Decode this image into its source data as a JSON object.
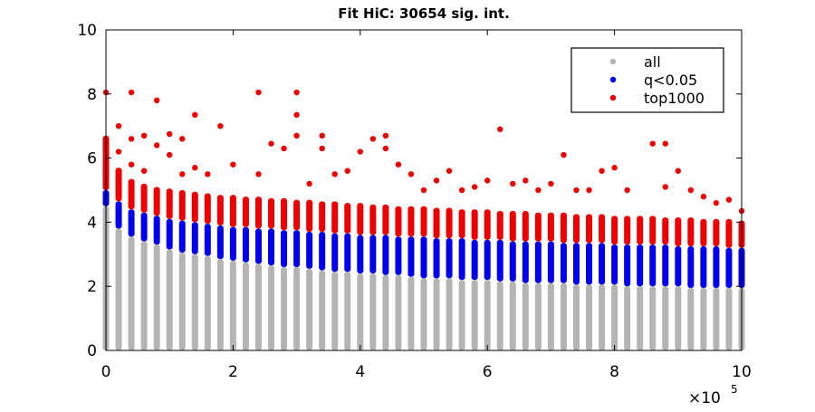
{
  "chart_data": {
    "type": "scatter",
    "title": "Fit HiC: 30654 sig. int.",
    "xlabel": "",
    "ylabel": "",
    "x_multiplier_label": "×10",
    "x_multiplier_exponent": "5",
    "xlim": [
      0,
      10
    ],
    "ylim": [
      0,
      10
    ],
    "x_ticks": [
      "0",
      "2",
      "4",
      "6",
      "8",
      "10"
    ],
    "y_ticks": [
      "0",
      "2",
      "4",
      "6",
      "8",
      "10"
    ],
    "x_tick_values": [
      0,
      2,
      4,
      6,
      8,
      10
    ],
    "y_tick_values": [
      0,
      2,
      4,
      6,
      8,
      10
    ],
    "grid": false,
    "legend_position": "top-right",
    "colors": {
      "all": "#b4b4b4",
      "q": "#0000ee",
      "top": "#ee0000"
    },
    "series": [
      {
        "name": "all",
        "color": "#b4b4b4"
      },
      {
        "name": "q<0.05",
        "color": "#0000ee"
      },
      {
        "name": "top1000",
        "color": "#ee0000"
      }
    ],
    "x": [
      0.0,
      0.2,
      0.4,
      0.6,
      0.8,
      1.0,
      1.2,
      1.4,
      1.6,
      1.8,
      2.0,
      2.2,
      2.4,
      2.6,
      2.8,
      3.0,
      3.2,
      3.4,
      3.6,
      3.8,
      4.0,
      4.2,
      4.4,
      4.6,
      4.8,
      5.0,
      5.2,
      5.4,
      5.6,
      5.8,
      6.0,
      6.2,
      6.4,
      6.6,
      6.8,
      7.0,
      7.2,
      7.4,
      7.6,
      7.8,
      8.0,
      8.2,
      8.4,
      8.6,
      8.8,
      9.0,
      9.2,
      9.4,
      9.6,
      9.8,
      10.0
    ],
    "all_top": [
      4.5,
      3.8,
      3.55,
      3.4,
      3.3,
      3.15,
      3.05,
      3.0,
      2.95,
      2.85,
      2.8,
      2.75,
      2.7,
      2.65,
      2.6,
      2.6,
      2.55,
      2.5,
      2.45,
      2.45,
      2.4,
      2.4,
      2.35,
      2.35,
      2.3,
      2.25,
      2.25,
      2.25,
      2.2,
      2.2,
      2.2,
      2.15,
      2.15,
      2.1,
      2.1,
      2.1,
      2.1,
      2.05,
      2.05,
      2.05,
      2.05,
      2.0,
      2.0,
      2.0,
      2.0,
      2.0,
      1.95,
      1.95,
      1.95,
      1.95,
      1.95
    ],
    "q_top": [
      5.0,
      4.65,
      4.4,
      4.3,
      4.2,
      4.1,
      4.05,
      4.0,
      3.95,
      3.9,
      3.85,
      3.85,
      3.8,
      3.8,
      3.75,
      3.75,
      3.7,
      3.7,
      3.65,
      3.65,
      3.6,
      3.6,
      3.6,
      3.55,
      3.55,
      3.55,
      3.5,
      3.5,
      3.5,
      3.45,
      3.45,
      3.45,
      3.4,
      3.4,
      3.4,
      3.4,
      3.35,
      3.35,
      3.35,
      3.35,
      3.3,
      3.3,
      3.3,
      3.3,
      3.3,
      3.25,
      3.25,
      3.25,
      3.25,
      3.2,
      3.2
    ],
    "red_top": [
      6.7,
      5.7,
      5.35,
      5.2,
      5.1,
      5.05,
      5.0,
      4.95,
      4.9,
      4.85,
      4.85,
      4.8,
      4.8,
      4.75,
      4.75,
      4.7,
      4.7,
      4.65,
      4.65,
      4.6,
      4.6,
      4.55,
      4.55,
      4.5,
      4.5,
      4.5,
      4.45,
      4.45,
      4.4,
      4.4,
      4.4,
      4.35,
      4.35,
      4.35,
      4.3,
      4.3,
      4.3,
      4.25,
      4.25,
      4.25,
      4.2,
      4.2,
      4.2,
      4.2,
      4.15,
      4.15,
      4.15,
      4.1,
      4.1,
      4.1,
      4.05
    ],
    "top1000_outliers": [
      [
        0.0,
        8.05
      ],
      [
        0.0,
        6.4
      ],
      [
        0.0,
        6.0
      ],
      [
        0.2,
        6.2
      ],
      [
        0.2,
        7.0
      ],
      [
        0.4,
        8.05
      ],
      [
        0.4,
        6.6
      ],
      [
        0.4,
        5.8
      ],
      [
        0.6,
        6.7
      ],
      [
        0.6,
        5.6
      ],
      [
        0.8,
        7.8
      ],
      [
        0.8,
        6.4
      ],
      [
        1.0,
        6.75
      ],
      [
        1.0,
        6.1
      ],
      [
        1.2,
        6.6
      ],
      [
        1.2,
        5.5
      ],
      [
        1.4,
        7.35
      ],
      [
        1.4,
        5.7
      ],
      [
        1.6,
        5.5
      ],
      [
        1.8,
        7.0
      ],
      [
        2.0,
        5.8
      ],
      [
        2.4,
        8.05
      ],
      [
        2.4,
        5.5
      ],
      [
        2.6,
        6.45
      ],
      [
        2.8,
        6.3
      ],
      [
        3.0,
        8.05
      ],
      [
        3.0,
        7.35
      ],
      [
        3.0,
        6.7
      ],
      [
        3.2,
        5.2
      ],
      [
        3.4,
        6.7
      ],
      [
        3.4,
        6.3
      ],
      [
        3.6,
        5.5
      ],
      [
        3.8,
        5.6
      ],
      [
        4.0,
        6.2
      ],
      [
        4.2,
        6.6
      ],
      [
        4.4,
        6.7
      ],
      [
        4.4,
        6.3
      ],
      [
        4.6,
        5.8
      ],
      [
        4.8,
        5.5
      ],
      [
        5.0,
        5.0
      ],
      [
        5.2,
        5.3
      ],
      [
        5.4,
        5.6
      ],
      [
        5.6,
        5.0
      ],
      [
        5.8,
        5.1
      ],
      [
        6.0,
        5.3
      ],
      [
        6.2,
        6.9
      ],
      [
        6.4,
        5.2
      ],
      [
        6.6,
        5.3
      ],
      [
        6.8,
        5.0
      ],
      [
        7.0,
        5.2
      ],
      [
        7.2,
        6.1
      ],
      [
        7.4,
        5.0
      ],
      [
        7.6,
        5.0
      ],
      [
        7.8,
        5.6
      ],
      [
        8.0,
        5.7
      ],
      [
        8.2,
        5.0
      ],
      [
        8.6,
        6.45
      ],
      [
        8.8,
        6.45
      ],
      [
        8.8,
        5.1
      ],
      [
        9.0,
        5.6
      ],
      [
        9.2,
        5.0
      ],
      [
        9.4,
        4.8
      ],
      [
        9.6,
        4.6
      ],
      [
        9.8,
        4.7
      ],
      [
        10.0,
        4.35
      ]
    ]
  }
}
